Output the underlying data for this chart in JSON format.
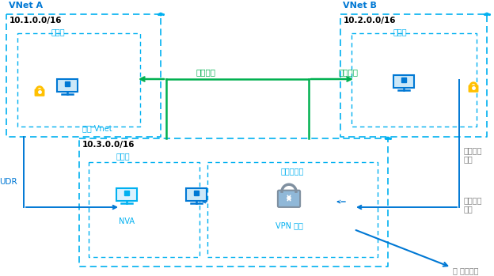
{
  "bg_color": "#ffffff",
  "title_color": "#0078d4",
  "label_color": "#00b0f0",
  "gray_color": "#7f7f7f",
  "green_color": "#00b050",
  "dark_blue": "#0078d4",
  "light_blue_dashed": "#00b0f0",
  "vnet_a_label": "VNet A",
  "vnet_b_label": "VNet B",
  "hub_vnet_label": "中樞 Vnet",
  "vnet_a_ip": "10.1.0.0/16",
  "vnet_b_ip": "10.2.0.0/16",
  "hub_ip": "10.3.0.0/16",
  "subnet_label": "子網路",
  "gateway_subnet_label": "閘道子網路",
  "peering_left": "對等互連",
  "peering_right": "對等互連",
  "udr_label": "UDR",
  "nva_label": "NVA",
  "vpn_label": "VPN 閘道",
  "allow_transit": "允許閘道\n傳輸",
  "use_remote": "使用遠端\n閘道",
  "to_on_prem": "至 內部部署"
}
